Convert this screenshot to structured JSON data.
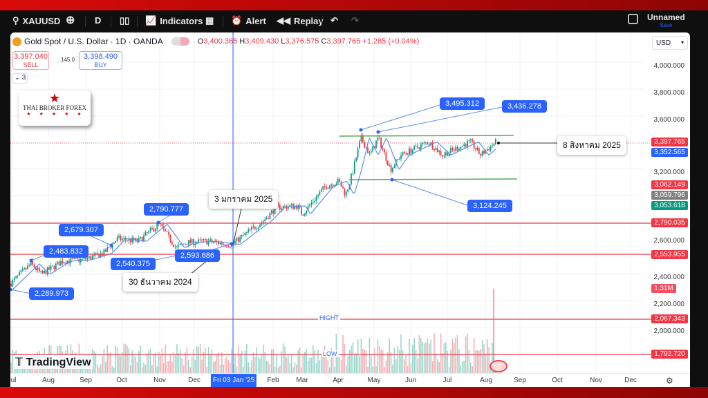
{
  "toolbar": {
    "symbol": "XAUUSD",
    "interval": "D",
    "indicators": "Indicators",
    "alert": "Alert",
    "replay": "Replay",
    "layout_name": "Unnamed",
    "save": "Save"
  },
  "legend": {
    "title": "Gold Spot / U.S. Dollar · 1D · OANDA",
    "o_label": "O",
    "o": "3,400.365",
    "h_label": "H",
    "h": "3,409.430",
    "l_label": "L",
    "l": "3,376.575",
    "c_label": "C",
    "c": "3,397.765",
    "change": "+1.285 (+0.04%)"
  },
  "trade": {
    "sell_price": "3,397.040",
    "sell": "SELL",
    "spread": "145.0",
    "buy_price": "3,398.490",
    "buy": "BUY",
    "collapse_count": "3"
  },
  "logo": {
    "text": "THAI BROKER FOREX"
  },
  "currency": "USD",
  "price_axis": [
    "4,000.000",
    "3,800.000",
    "3,600.000",
    "3,200.000",
    "2,600.000",
    "2,400.000",
    "2,200.000",
    "2,000.000"
  ],
  "axis_tags": {
    "last": "3,397.765",
    "ma": "3,352.565",
    "t1": "3,062.149",
    "t2": "3,059.796",
    "t3": "3,053.618",
    "l1": "2,790.035",
    "l2": "2,553.955",
    "vol": "1.31M",
    "high": "2,067.343",
    "low": "1,792.720"
  },
  "levels": {
    "hight_label": "HIGHT",
    "low_label": "LOW"
  },
  "callouts": {
    "a": "2,790.777",
    "b": "2,679.307",
    "c": "2,483.832",
    "d": "2,540.375",
    "e": "2,593.686",
    "f": "2,289.973",
    "g": "3,495.312",
    "h": "3,436.278",
    "i": "3,124.245"
  },
  "notes": {
    "jan": "3 มกราคม 2025",
    "dec": "30 ธันวาคม 2024",
    "aug": "8 สิงหาคม 2025"
  },
  "months": [
    "Jul",
    "Aug",
    "Sep",
    "Oct",
    "Nov",
    "Dec",
    "Fri 03 Jan '25",
    "Feb",
    "Mar",
    "Apr",
    "May",
    "Jun",
    "Jul",
    "Aug",
    "Sep",
    "Oct",
    "Nov",
    "Dec"
  ],
  "brand": "TradingView",
  "colors": {
    "up": "#089981",
    "down": "#f23645",
    "accent": "#2962ff"
  },
  "price_path": [
    [
      0,
      2330
    ],
    [
      30,
      2480
    ],
    [
      45,
      2400
    ],
    [
      75,
      2500
    ],
    [
      105,
      2510
    ],
    [
      135,
      2560
    ],
    [
      155,
      2670
    ],
    [
      185,
      2650
    ],
    [
      215,
      2780
    ],
    [
      240,
      2600
    ],
    [
      255,
      2640
    ],
    [
      285,
      2650
    ],
    [
      320,
      2625
    ],
    [
      345,
      2724
    ],
    [
      365,
      2800
    ],
    [
      385,
      2906
    ],
    [
      415,
      2917
    ],
    [
      422,
      2854
    ],
    [
      455,
      3062
    ],
    [
      475,
      3104
    ],
    [
      485,
      3000
    ],
    [
      495,
      3170
    ],
    [
      507,
      3430
    ],
    [
      520,
      3300
    ],
    [
      532,
      3430
    ],
    [
      550,
      3190
    ],
    [
      565,
      3300
    ],
    [
      605,
      3400
    ],
    [
      625,
      3300
    ],
    [
      665,
      3400
    ],
    [
      680,
      3300
    ],
    [
      702,
      3397
    ]
  ]
}
